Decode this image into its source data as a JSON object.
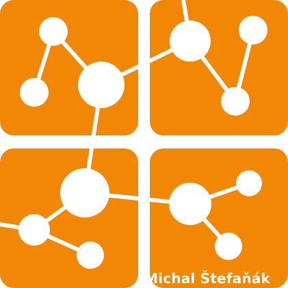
{
  "logo": {
    "icon": "molecule-network-logo",
    "colors": {
      "tile": "#F28705",
      "graph": "#FFFFFF",
      "gap": "#FFFFFF"
    },
    "author_name": "Michal Štefaňák"
  }
}
